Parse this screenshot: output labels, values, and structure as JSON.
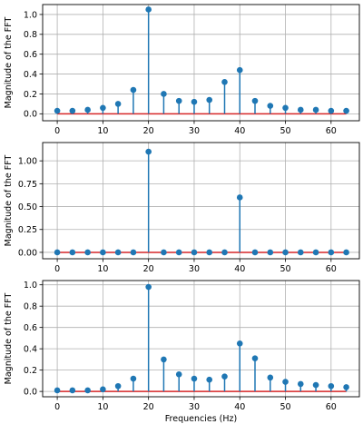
{
  "chart_data": [
    {
      "type": "stem",
      "xlabel": "",
      "ylabel": "Magnitude of the FFT",
      "xlim": [
        -3.2,
        66.2
      ],
      "ylim": [
        -0.07,
        1.1
      ],
      "xticks": [
        0,
        10,
        20,
        30,
        40,
        50,
        60
      ],
      "xtick_labels": [
        "0",
        "10",
        "20",
        "30",
        "40",
        "50",
        "60"
      ],
      "yticks": [
        0.0,
        0.2,
        0.4,
        0.6,
        0.8,
        1.0
      ],
      "ytick_labels": [
        "0.0",
        "0.2",
        "0.4",
        "0.6",
        "0.8",
        "1.0"
      ],
      "grid": true,
      "x": [
        0,
        3.33,
        6.67,
        10,
        13.33,
        16.67,
        20,
        23.33,
        26.67,
        30,
        33.33,
        36.67,
        40,
        43.33,
        46.67,
        50,
        53.33,
        56.67,
        60,
        63.33
      ],
      "values": [
        0.03,
        0.03,
        0.04,
        0.06,
        0.1,
        0.24,
        1.05,
        0.2,
        0.13,
        0.12,
        0.14,
        0.32,
        0.44,
        0.13,
        0.08,
        0.06,
        0.04,
        0.04,
        0.03,
        0.03
      ]
    },
    {
      "type": "stem",
      "xlabel": "",
      "ylabel": "Magnitude of the FFT",
      "xlim": [
        -3.2,
        66.2
      ],
      "ylim": [
        -0.07,
        1.2
      ],
      "xticks": [
        0,
        10,
        20,
        30,
        40,
        50,
        60
      ],
      "xtick_labels": [
        "0",
        "10",
        "20",
        "30",
        "40",
        "50",
        "60"
      ],
      "yticks": [
        0.0,
        0.25,
        0.5,
        0.75,
        1.0
      ],
      "ytick_labels": [
        "0.00",
        "0.25",
        "0.50",
        "0.75",
        "1.00"
      ],
      "grid": true,
      "x": [
        0,
        3.33,
        6.67,
        10,
        13.33,
        16.67,
        20,
        23.33,
        26.67,
        30,
        33.33,
        36.67,
        40,
        43.33,
        46.67,
        50,
        53.33,
        56.67,
        60,
        63.33
      ],
      "values": [
        0,
        0,
        0,
        0,
        0,
        0,
        1.1,
        0,
        0,
        0,
        0,
        0,
        0.6,
        0,
        0,
        0,
        0,
        0,
        0,
        0
      ]
    },
    {
      "type": "stem",
      "xlabel": "Frequencies (Hz)",
      "ylabel": "Magnitude of the FFT",
      "xlim": [
        -3.2,
        66.2
      ],
      "ylim": [
        -0.05,
        1.04
      ],
      "xticks": [
        0,
        10,
        20,
        30,
        40,
        50,
        60
      ],
      "xtick_labels": [
        "0",
        "10",
        "20",
        "30",
        "40",
        "50",
        "60"
      ],
      "yticks": [
        0.0,
        0.2,
        0.4,
        0.6,
        0.8,
        1.0
      ],
      "ytick_labels": [
        "0.0",
        "0.2",
        "0.4",
        "0.6",
        "0.8",
        "1.0"
      ],
      "grid": true,
      "x": [
        0,
        3.33,
        6.67,
        10,
        13.33,
        16.67,
        20,
        23.33,
        26.67,
        30,
        33.33,
        36.67,
        40,
        43.33,
        46.67,
        50,
        53.33,
        56.67,
        60,
        63.33
      ],
      "values": [
        0.01,
        0.01,
        0.01,
        0.02,
        0.05,
        0.12,
        0.98,
        0.3,
        0.16,
        0.12,
        0.11,
        0.14,
        0.45,
        0.31,
        0.13,
        0.09,
        0.07,
        0.06,
        0.05,
        0.04
      ]
    }
  ],
  "colors": {
    "stem": "#1f77b4",
    "baseline": "#d62728",
    "grid": "#b0b0b0",
    "axes": "#000000"
  }
}
